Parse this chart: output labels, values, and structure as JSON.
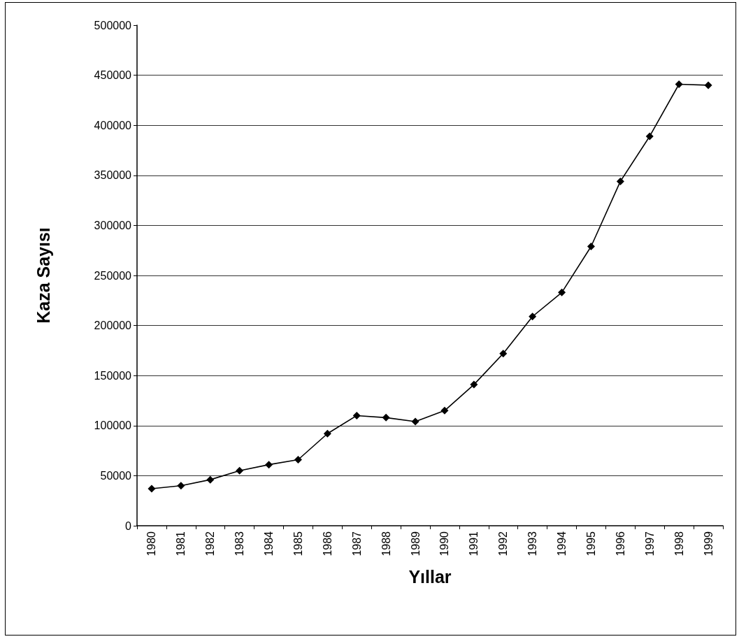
{
  "chart_data": {
    "type": "line",
    "xlabel": "Yıllar",
    "ylabel": "Kaza Sayısı",
    "categories": [
      "1980",
      "1981",
      "1982",
      "1983",
      "1984",
      "1985",
      "1986",
      "1987",
      "1988",
      "1989",
      "1990",
      "1991",
      "1992",
      "1993",
      "1994",
      "1995",
      "1996",
      "1997",
      "1998",
      "1999"
    ],
    "series": [
      {
        "color": "#000000",
        "values": [
          37000,
          40000,
          46000,
          55000,
          61000,
          66000,
          92000,
          110000,
          108000,
          104000,
          115000,
          141000,
          172000,
          209000,
          233000,
          279000,
          344000,
          389000,
          441000,
          440000
        ]
      }
    ],
    "ylim": [
      0,
      500000
    ],
    "yticks": [
      0,
      50000,
      100000,
      150000,
      200000,
      250000,
      300000,
      350000,
      400000,
      450000,
      500000
    ],
    "grid": "y",
    "marker": "diamond",
    "line_style": "solid"
  }
}
